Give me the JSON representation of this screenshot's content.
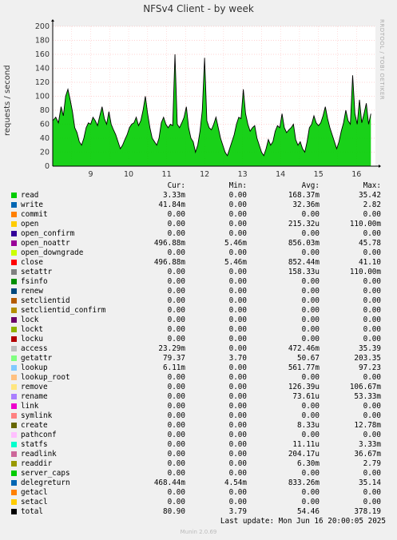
{
  "title": "NFSv4 Client - by week",
  "ylabel": "requests / second",
  "watermark": "RRDTOOL / TOBI OETIKER",
  "columns": {
    "cur": "Cur:",
    "min": "Min:",
    "avg": "Avg:",
    "max": "Max:"
  },
  "last_update": "Last update: Mon Jun 16 20:00:05 2025",
  "footer": "Munin 2.0.69",
  "colors": {
    "total_line": "#000000",
    "area_fill": "#00cc00",
    "grid": "#ff8080",
    "background": "#ffffff"
  },
  "legend": [
    {
      "name": "read",
      "color": "#00cc00",
      "cur": "3.33m",
      "min": "0.00",
      "avg": "168.37m",
      "max": "35.42"
    },
    {
      "name": "write",
      "color": "#0066b3",
      "cur": "41.84m",
      "min": "0.00",
      "avg": "32.36m",
      "max": "2.82"
    },
    {
      "name": "commit",
      "color": "#ff8000",
      "cur": "0.00",
      "min": "0.00",
      "avg": "0.00",
      "max": "0.00"
    },
    {
      "name": "open",
      "color": "#ffcc00",
      "cur": "0.00",
      "min": "0.00",
      "avg": "215.32u",
      "max": "110.00m"
    },
    {
      "name": "open_confirm",
      "color": "#330099",
      "cur": "0.00",
      "min": "0.00",
      "avg": "0.00",
      "max": "0.00"
    },
    {
      "name": "open_noattr",
      "color": "#990099",
      "cur": "496.88m",
      "min": "5.46m",
      "avg": "856.03m",
      "max": "45.78"
    },
    {
      "name": "open_downgrade",
      "color": "#ccff00",
      "cur": "0.00",
      "min": "0.00",
      "avg": "0.00",
      "max": "0.00"
    },
    {
      "name": "close",
      "color": "#ff0000",
      "cur": "496.88m",
      "min": "5.46m",
      "avg": "852.44m",
      "max": "41.10"
    },
    {
      "name": "setattr",
      "color": "#808080",
      "cur": "0.00",
      "min": "0.00",
      "avg": "158.33u",
      "max": "110.00m"
    },
    {
      "name": "fsinfo",
      "color": "#008f00",
      "cur": "0.00",
      "min": "0.00",
      "avg": "0.00",
      "max": "0.00"
    },
    {
      "name": "renew",
      "color": "#00487d",
      "cur": "0.00",
      "min": "0.00",
      "avg": "0.00",
      "max": "0.00"
    },
    {
      "name": "setclientid",
      "color": "#b35a00",
      "cur": "0.00",
      "min": "0.00",
      "avg": "0.00",
      "max": "0.00"
    },
    {
      "name": "setclientid_confirm",
      "color": "#b38f00",
      "cur": "0.00",
      "min": "0.00",
      "avg": "0.00",
      "max": "0.00"
    },
    {
      "name": "lock",
      "color": "#6b006b",
      "cur": "0.00",
      "min": "0.00",
      "avg": "0.00",
      "max": "0.00"
    },
    {
      "name": "lockt",
      "color": "#8fb300",
      "cur": "0.00",
      "min": "0.00",
      "avg": "0.00",
      "max": "0.00"
    },
    {
      "name": "locku",
      "color": "#b30000",
      "cur": "0.00",
      "min": "0.00",
      "avg": "0.00",
      "max": "0.00"
    },
    {
      "name": "access",
      "color": "#bebebe",
      "cur": "23.29m",
      "min": "0.00",
      "avg": "472.46m",
      "max": "35.39"
    },
    {
      "name": "getattr",
      "color": "#80ff80",
      "cur": "79.37",
      "min": "3.70",
      "avg": "50.67",
      "max": "203.35"
    },
    {
      "name": "lookup",
      "color": "#80c9ff",
      "cur": "6.11m",
      "min": "0.00",
      "avg": "561.77m",
      "max": "97.23"
    },
    {
      "name": "lookup_root",
      "color": "#ffc080",
      "cur": "0.00",
      "min": "0.00",
      "avg": "0.00",
      "max": "0.00"
    },
    {
      "name": "remove",
      "color": "#ffe680",
      "cur": "0.00",
      "min": "0.00",
      "avg": "126.39u",
      "max": "106.67m"
    },
    {
      "name": "rename",
      "color": "#aa80ff",
      "cur": "0.00",
      "min": "0.00",
      "avg": "73.61u",
      "max": "53.33m"
    },
    {
      "name": "link",
      "color": "#ee00cc",
      "cur": "0.00",
      "min": "0.00",
      "avg": "0.00",
      "max": "0.00"
    },
    {
      "name": "symlink",
      "color": "#ff8080",
      "cur": "0.00",
      "min": "0.00",
      "avg": "0.00",
      "max": "0.00"
    },
    {
      "name": "create",
      "color": "#666600",
      "cur": "0.00",
      "min": "0.00",
      "avg": "8.33u",
      "max": "12.78m"
    },
    {
      "name": "pathconf",
      "color": "#ffbfff",
      "cur": "0.00",
      "min": "0.00",
      "avg": "0.00",
      "max": "0.00"
    },
    {
      "name": "statfs",
      "color": "#00ffcc",
      "cur": "0.00",
      "min": "0.00",
      "avg": "11.11u",
      "max": "3.33m"
    },
    {
      "name": "readlink",
      "color": "#cc6699",
      "cur": "0.00",
      "min": "0.00",
      "avg": "204.17u",
      "max": "36.67m"
    },
    {
      "name": "readdir",
      "color": "#999900",
      "cur": "0.00",
      "min": "0.00",
      "avg": "6.30m",
      "max": "2.79"
    },
    {
      "name": "server_caps",
      "color": "#00cc00",
      "cur": "0.00",
      "min": "0.00",
      "avg": "0.00",
      "max": "0.00"
    },
    {
      "name": "delegreturn",
      "color": "#0066b3",
      "cur": "468.44m",
      "min": "4.54m",
      "avg": "833.26m",
      "max": "35.14"
    },
    {
      "name": "getacl",
      "color": "#ff8000",
      "cur": "0.00",
      "min": "0.00",
      "avg": "0.00",
      "max": "0.00"
    },
    {
      "name": "setacl",
      "color": "#ffcc00",
      "cur": "0.00",
      "min": "0.00",
      "avg": "0.00",
      "max": "0.00"
    },
    {
      "name": "total",
      "color": "#000000",
      "cur": "80.90",
      "min": "3.79",
      "avg": "54.46",
      "max": "378.19"
    }
  ],
  "chart_data": {
    "type": "area",
    "ylabel": "requests / second",
    "ylim": [
      0,
      200
    ],
    "yticks": [
      0,
      20,
      40,
      60,
      80,
      100,
      120,
      140,
      160,
      180,
      200
    ],
    "x_ticks": [
      {
        "label": "9",
        "t": 1.0
      },
      {
        "label": "10",
        "t": 2.0
      },
      {
        "label": "11",
        "t": 3.0
      },
      {
        "label": "12",
        "t": 4.0
      },
      {
        "label": "13",
        "t": 5.0
      },
      {
        "label": "14",
        "t": 6.0
      },
      {
        "label": "15",
        "t": 7.0
      },
      {
        "label": "16",
        "t": 8.0
      }
    ],
    "xlim": [
      0,
      8.5
    ],
    "grid": true,
    "series_name": "total",
    "total": [
      [
        0.0,
        65
      ],
      [
        0.08,
        70
      ],
      [
        0.15,
        62
      ],
      [
        0.22,
        85
      ],
      [
        0.28,
        72
      ],
      [
        0.34,
        100
      ],
      [
        0.4,
        110
      ],
      [
        0.46,
        95
      ],
      [
        0.52,
        78
      ],
      [
        0.58,
        55
      ],
      [
        0.64,
        48
      ],
      [
        0.7,
        35
      ],
      [
        0.76,
        30
      ],
      [
        0.82,
        40
      ],
      [
        0.88,
        55
      ],
      [
        0.94,
        62
      ],
      [
        1.0,
        60
      ],
      [
        1.06,
        70
      ],
      [
        1.12,
        65
      ],
      [
        1.18,
        58
      ],
      [
        1.24,
        72
      ],
      [
        1.3,
        85
      ],
      [
        1.36,
        68
      ],
      [
        1.42,
        60
      ],
      [
        1.48,
        78
      ],
      [
        1.54,
        60
      ],
      [
        1.6,
        52
      ],
      [
        1.66,
        45
      ],
      [
        1.72,
        35
      ],
      [
        1.78,
        25
      ],
      [
        1.84,
        30
      ],
      [
        1.9,
        38
      ],
      [
        1.96,
        45
      ],
      [
        2.02,
        55
      ],
      [
        2.08,
        60
      ],
      [
        2.14,
        62
      ],
      [
        2.2,
        70
      ],
      [
        2.26,
        58
      ],
      [
        2.32,
        65
      ],
      [
        2.38,
        80
      ],
      [
        2.44,
        100
      ],
      [
        2.5,
        75
      ],
      [
        2.56,
        55
      ],
      [
        2.62,
        40
      ],
      [
        2.68,
        35
      ],
      [
        2.74,
        30
      ],
      [
        2.8,
        40
      ],
      [
        2.86,
        62
      ],
      [
        2.92,
        70
      ],
      [
        2.98,
        60
      ],
      [
        3.04,
        55
      ],
      [
        3.1,
        60
      ],
      [
        3.16,
        58
      ],
      [
        3.22,
        160
      ],
      [
        3.28,
        60
      ],
      [
        3.34,
        55
      ],
      [
        3.4,
        62
      ],
      [
        3.46,
        70
      ],
      [
        3.52,
        85
      ],
      [
        3.58,
        55
      ],
      [
        3.64,
        40
      ],
      [
        3.7,
        35
      ],
      [
        3.76,
        20
      ],
      [
        3.82,
        30
      ],
      [
        3.88,
        50
      ],
      [
        3.94,
        80
      ],
      [
        4.0,
        155
      ],
      [
        4.06,
        65
      ],
      [
        4.12,
        55
      ],
      [
        4.18,
        52
      ],
      [
        4.24,
        60
      ],
      [
        4.3,
        70
      ],
      [
        4.36,
        55
      ],
      [
        4.42,
        40
      ],
      [
        4.48,
        30
      ],
      [
        4.54,
        20
      ],
      [
        4.6,
        15
      ],
      [
        4.66,
        25
      ],
      [
        4.72,
        35
      ],
      [
        4.78,
        45
      ],
      [
        4.84,
        60
      ],
      [
        4.9,
        70
      ],
      [
        4.96,
        68
      ],
      [
        5.02,
        110
      ],
      [
        5.08,
        75
      ],
      [
        5.14,
        60
      ],
      [
        5.2,
        50
      ],
      [
        5.26,
        55
      ],
      [
        5.32,
        58
      ],
      [
        5.38,
        40
      ],
      [
        5.44,
        30
      ],
      [
        5.5,
        20
      ],
      [
        5.56,
        15
      ],
      [
        5.62,
        25
      ],
      [
        5.68,
        38
      ],
      [
        5.74,
        30
      ],
      [
        5.8,
        35
      ],
      [
        5.86,
        50
      ],
      [
        5.92,
        58
      ],
      [
        5.98,
        55
      ],
      [
        6.04,
        75
      ],
      [
        6.1,
        55
      ],
      [
        6.16,
        48
      ],
      [
        6.22,
        52
      ],
      [
        6.28,
        55
      ],
      [
        6.34,
        60
      ],
      [
        6.4,
        38
      ],
      [
        6.46,
        30
      ],
      [
        6.52,
        35
      ],
      [
        6.58,
        25
      ],
      [
        6.64,
        20
      ],
      [
        6.7,
        35
      ],
      [
        6.76,
        55
      ],
      [
        6.82,
        60
      ],
      [
        6.88,
        72
      ],
      [
        6.94,
        62
      ],
      [
        7.0,
        58
      ],
      [
        7.06,
        62
      ],
      [
        7.12,
        72
      ],
      [
        7.18,
        85
      ],
      [
        7.24,
        68
      ],
      [
        7.3,
        55
      ],
      [
        7.36,
        45
      ],
      [
        7.42,
        35
      ],
      [
        7.48,
        25
      ],
      [
        7.54,
        35
      ],
      [
        7.6,
        50
      ],
      [
        7.66,
        62
      ],
      [
        7.72,
        80
      ],
      [
        7.78,
        65
      ],
      [
        7.84,
        60
      ],
      [
        7.9,
        130
      ],
      [
        7.96,
        75
      ],
      [
        8.02,
        60
      ],
      [
        8.08,
        95
      ],
      [
        8.14,
        62
      ],
      [
        8.2,
        75
      ],
      [
        8.26,
        90
      ],
      [
        8.32,
        60
      ],
      [
        8.38,
        75
      ]
    ]
  }
}
